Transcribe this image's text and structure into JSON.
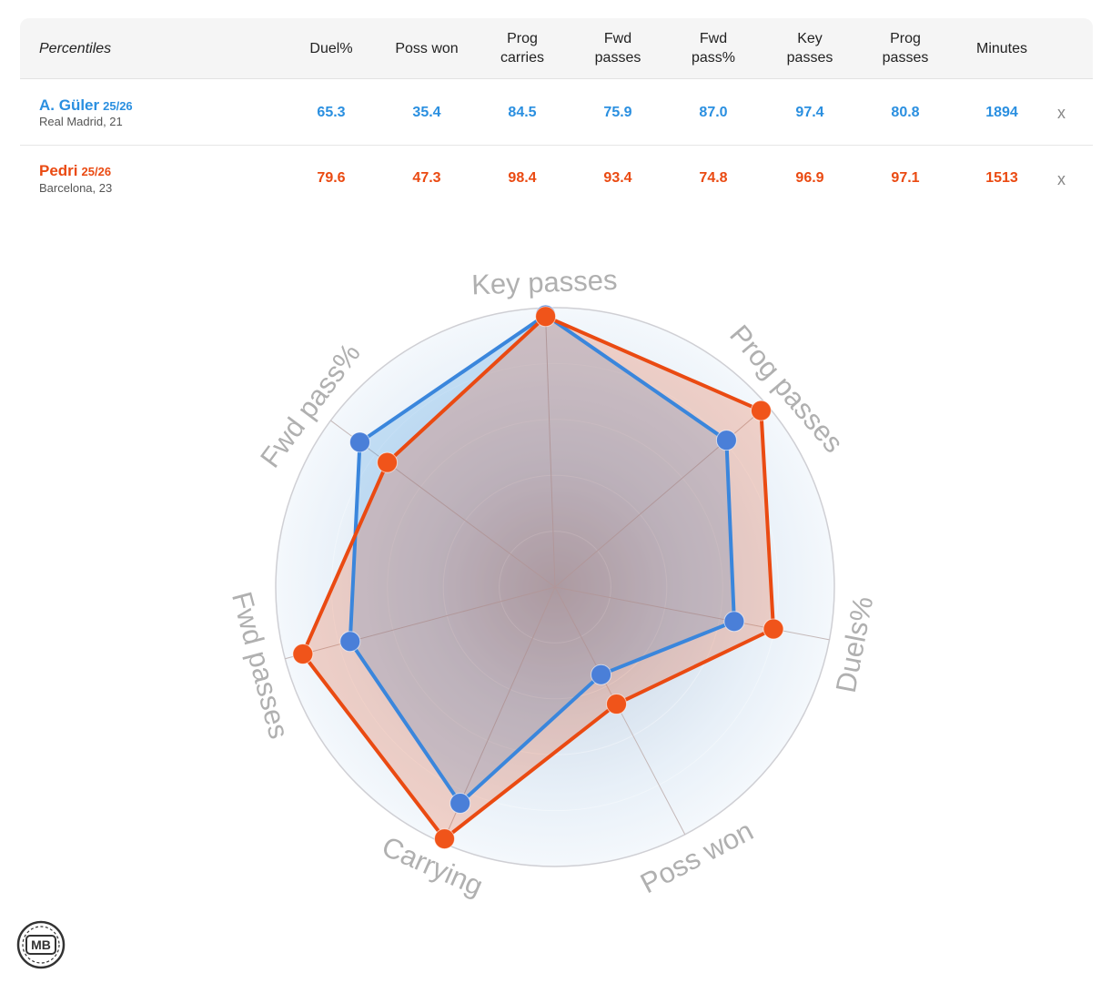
{
  "table": {
    "title": "Percentiles",
    "columns": [
      "Duel%",
      "Poss won",
      "Prog\ncarries",
      "Fwd\npasses",
      "Fwd\npass%",
      "Key\npasses",
      "Prog\npasses",
      "Minutes"
    ],
    "remove_label": "x",
    "players": [
      {
        "name": "A. Güler",
        "season": "25/26",
        "club": "Real Madrid, 21",
        "color": "#2a8fe0",
        "values": [
          "65.3",
          "35.4",
          "84.5",
          "75.9",
          "87.0",
          "97.4",
          "80.8",
          "1894"
        ]
      },
      {
        "name": "Pedri",
        "season": "25/26",
        "club": "Barcelona, 23",
        "color": "#ea4a12",
        "values": [
          "79.6",
          "47.3",
          "98.4",
          "93.4",
          "74.8",
          "96.9",
          "97.1",
          "1513"
        ]
      }
    ]
  },
  "chart_data": {
    "type": "radar",
    "axes": [
      "Key passes",
      "Prog passes",
      "Duels%",
      "Poss won",
      "Carrying",
      "Fwd passes",
      "Fwd pass%"
    ],
    "range": [
      0,
      100
    ],
    "series": [
      {
        "name": "A. Güler",
        "color": "#2a8fe0",
        "values": [
          97.4,
          80.8,
          65.3,
          35.4,
          84.5,
          75.9,
          87.0
        ]
      },
      {
        "name": "Pedri",
        "color": "#ea4a12",
        "values": [
          96.9,
          97.1,
          79.6,
          47.3,
          98.4,
          93.4,
          74.8
        ]
      }
    ]
  },
  "logo": {
    "text": "MB"
  }
}
